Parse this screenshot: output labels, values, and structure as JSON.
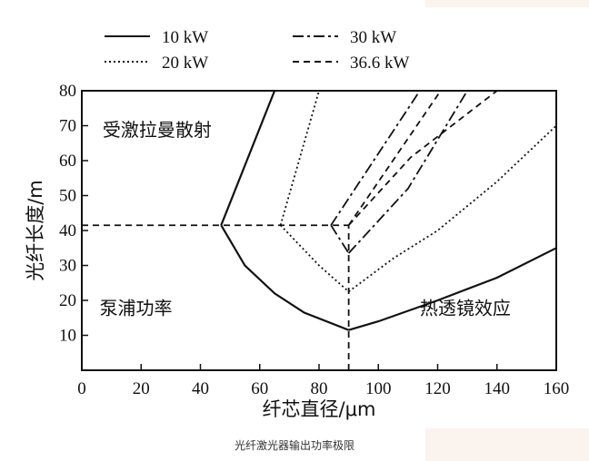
{
  "chart_data": {
    "type": "line",
    "title": "",
    "xlabel": "纤芯直径/μm",
    "ylabel": "光纤长度/m",
    "xlim": [
      0,
      160
    ],
    "ylim": [
      0,
      80
    ],
    "x_ticks": [
      "0",
      "20",
      "40",
      "60",
      "80",
      "100",
      "120",
      "140",
      "160"
    ],
    "y_ticks": [
      "10",
      "20",
      "30",
      "40",
      "50",
      "60",
      "70",
      "80"
    ],
    "legend_position": "top",
    "grid": false,
    "series": [
      {
        "name": "10 kW",
        "dash": "solid",
        "srs": [
          [
            47,
            41.5
          ],
          [
            65,
            80
          ]
        ],
        "pump": [
          [
            47,
            41.5
          ],
          [
            55,
            30
          ],
          [
            65,
            22
          ],
          [
            75,
            16.5
          ],
          [
            90,
            11.5
          ]
        ],
        "thermal": [
          [
            90,
            11.5
          ],
          [
            100,
            14
          ],
          [
            120,
            20
          ],
          [
            140,
            26.5
          ],
          [
            160,
            35
          ]
        ]
      },
      {
        "name": "20 kW",
        "dash": "dotted",
        "srs": [
          [
            67,
            41.5
          ],
          [
            80,
            80
          ]
        ],
        "pump": [
          [
            67,
            41.5
          ],
          [
            80,
            30
          ],
          [
            90,
            22.5
          ]
        ],
        "thermal": [
          [
            90,
            22.5
          ],
          [
            105,
            32
          ],
          [
            120,
            40
          ],
          [
            140,
            54
          ],
          [
            160,
            70
          ]
        ]
      },
      {
        "name": "30 kW",
        "dash": "dashdot",
        "srs": [
          [
            84,
            41.5
          ],
          [
            114,
            80
          ]
        ],
        "pump": [
          [
            84,
            41.5
          ],
          [
            90,
            33.5
          ]
        ],
        "thermal": [
          [
            90,
            33.5
          ],
          [
            110,
            52
          ],
          [
            130,
            80
          ]
        ]
      },
      {
        "name": "36.6 kW",
        "dash": "dashed",
        "srs": [
          [
            90,
            41.5
          ],
          [
            121,
            80
          ]
        ],
        "pump": [],
        "thermal": [
          [
            90,
            41.5
          ],
          [
            111,
            61
          ],
          [
            140,
            80
          ]
        ]
      }
    ],
    "boundary_lines": {
      "horizontal": {
        "y": 41.5,
        "x_from": 0,
        "x_to": 90
      },
      "vertical": {
        "x": 90,
        "y_from": 0,
        "y_to": 41.5
      }
    },
    "regions": [
      {
        "label": "受激拉曼散射",
        "x": 7,
        "y": 67
      },
      {
        "label": "泵浦功率",
        "x": 6,
        "y": 16
      },
      {
        "label": "热透镜效应",
        "x": 114,
        "y": 16
      }
    ]
  },
  "caption": "光纤激光器输出功率极限"
}
